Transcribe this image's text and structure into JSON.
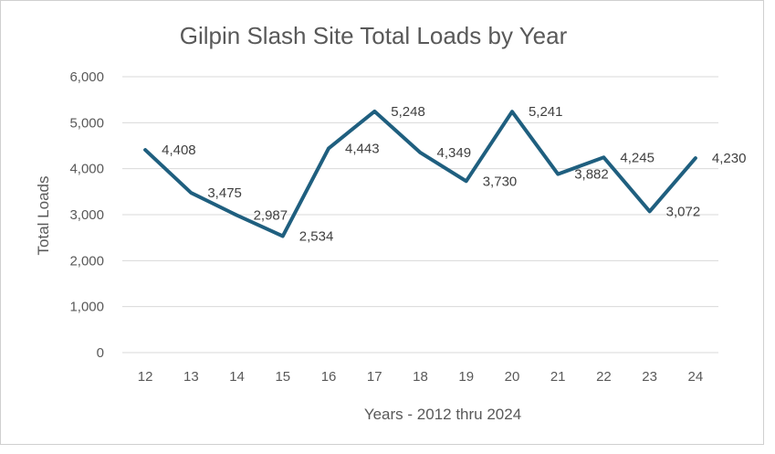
{
  "chart_data": {
    "type": "line",
    "title": "Gilpin Slash Site Total Loads by Year",
    "xlabel": "Years - 2012 thru 2024",
    "ylabel": "Total Loads",
    "categories": [
      "12",
      "13",
      "14",
      "15",
      "16",
      "17",
      "18",
      "19",
      "20",
      "21",
      "22",
      "23",
      "24"
    ],
    "values": [
      4408,
      3475,
      2987,
      2534,
      4443,
      5248,
      4349,
      3730,
      5241,
      3882,
      4245,
      3072,
      4230
    ],
    "data_labels": [
      "4,408",
      "3,475",
      "2,987",
      "2,534",
      "4,443",
      "5,248",
      "4,349",
      "3,730",
      "5,241",
      "3,882",
      "4,245",
      "3,072",
      "4,230"
    ],
    "y_ticks": [
      "0",
      "1,000",
      "2,000",
      "3,000",
      "4,000",
      "5,000",
      "6,000"
    ],
    "ylim": [
      0,
      6000
    ],
    "grid": true,
    "legend": "none",
    "line_color": "#1f5f7f"
  }
}
